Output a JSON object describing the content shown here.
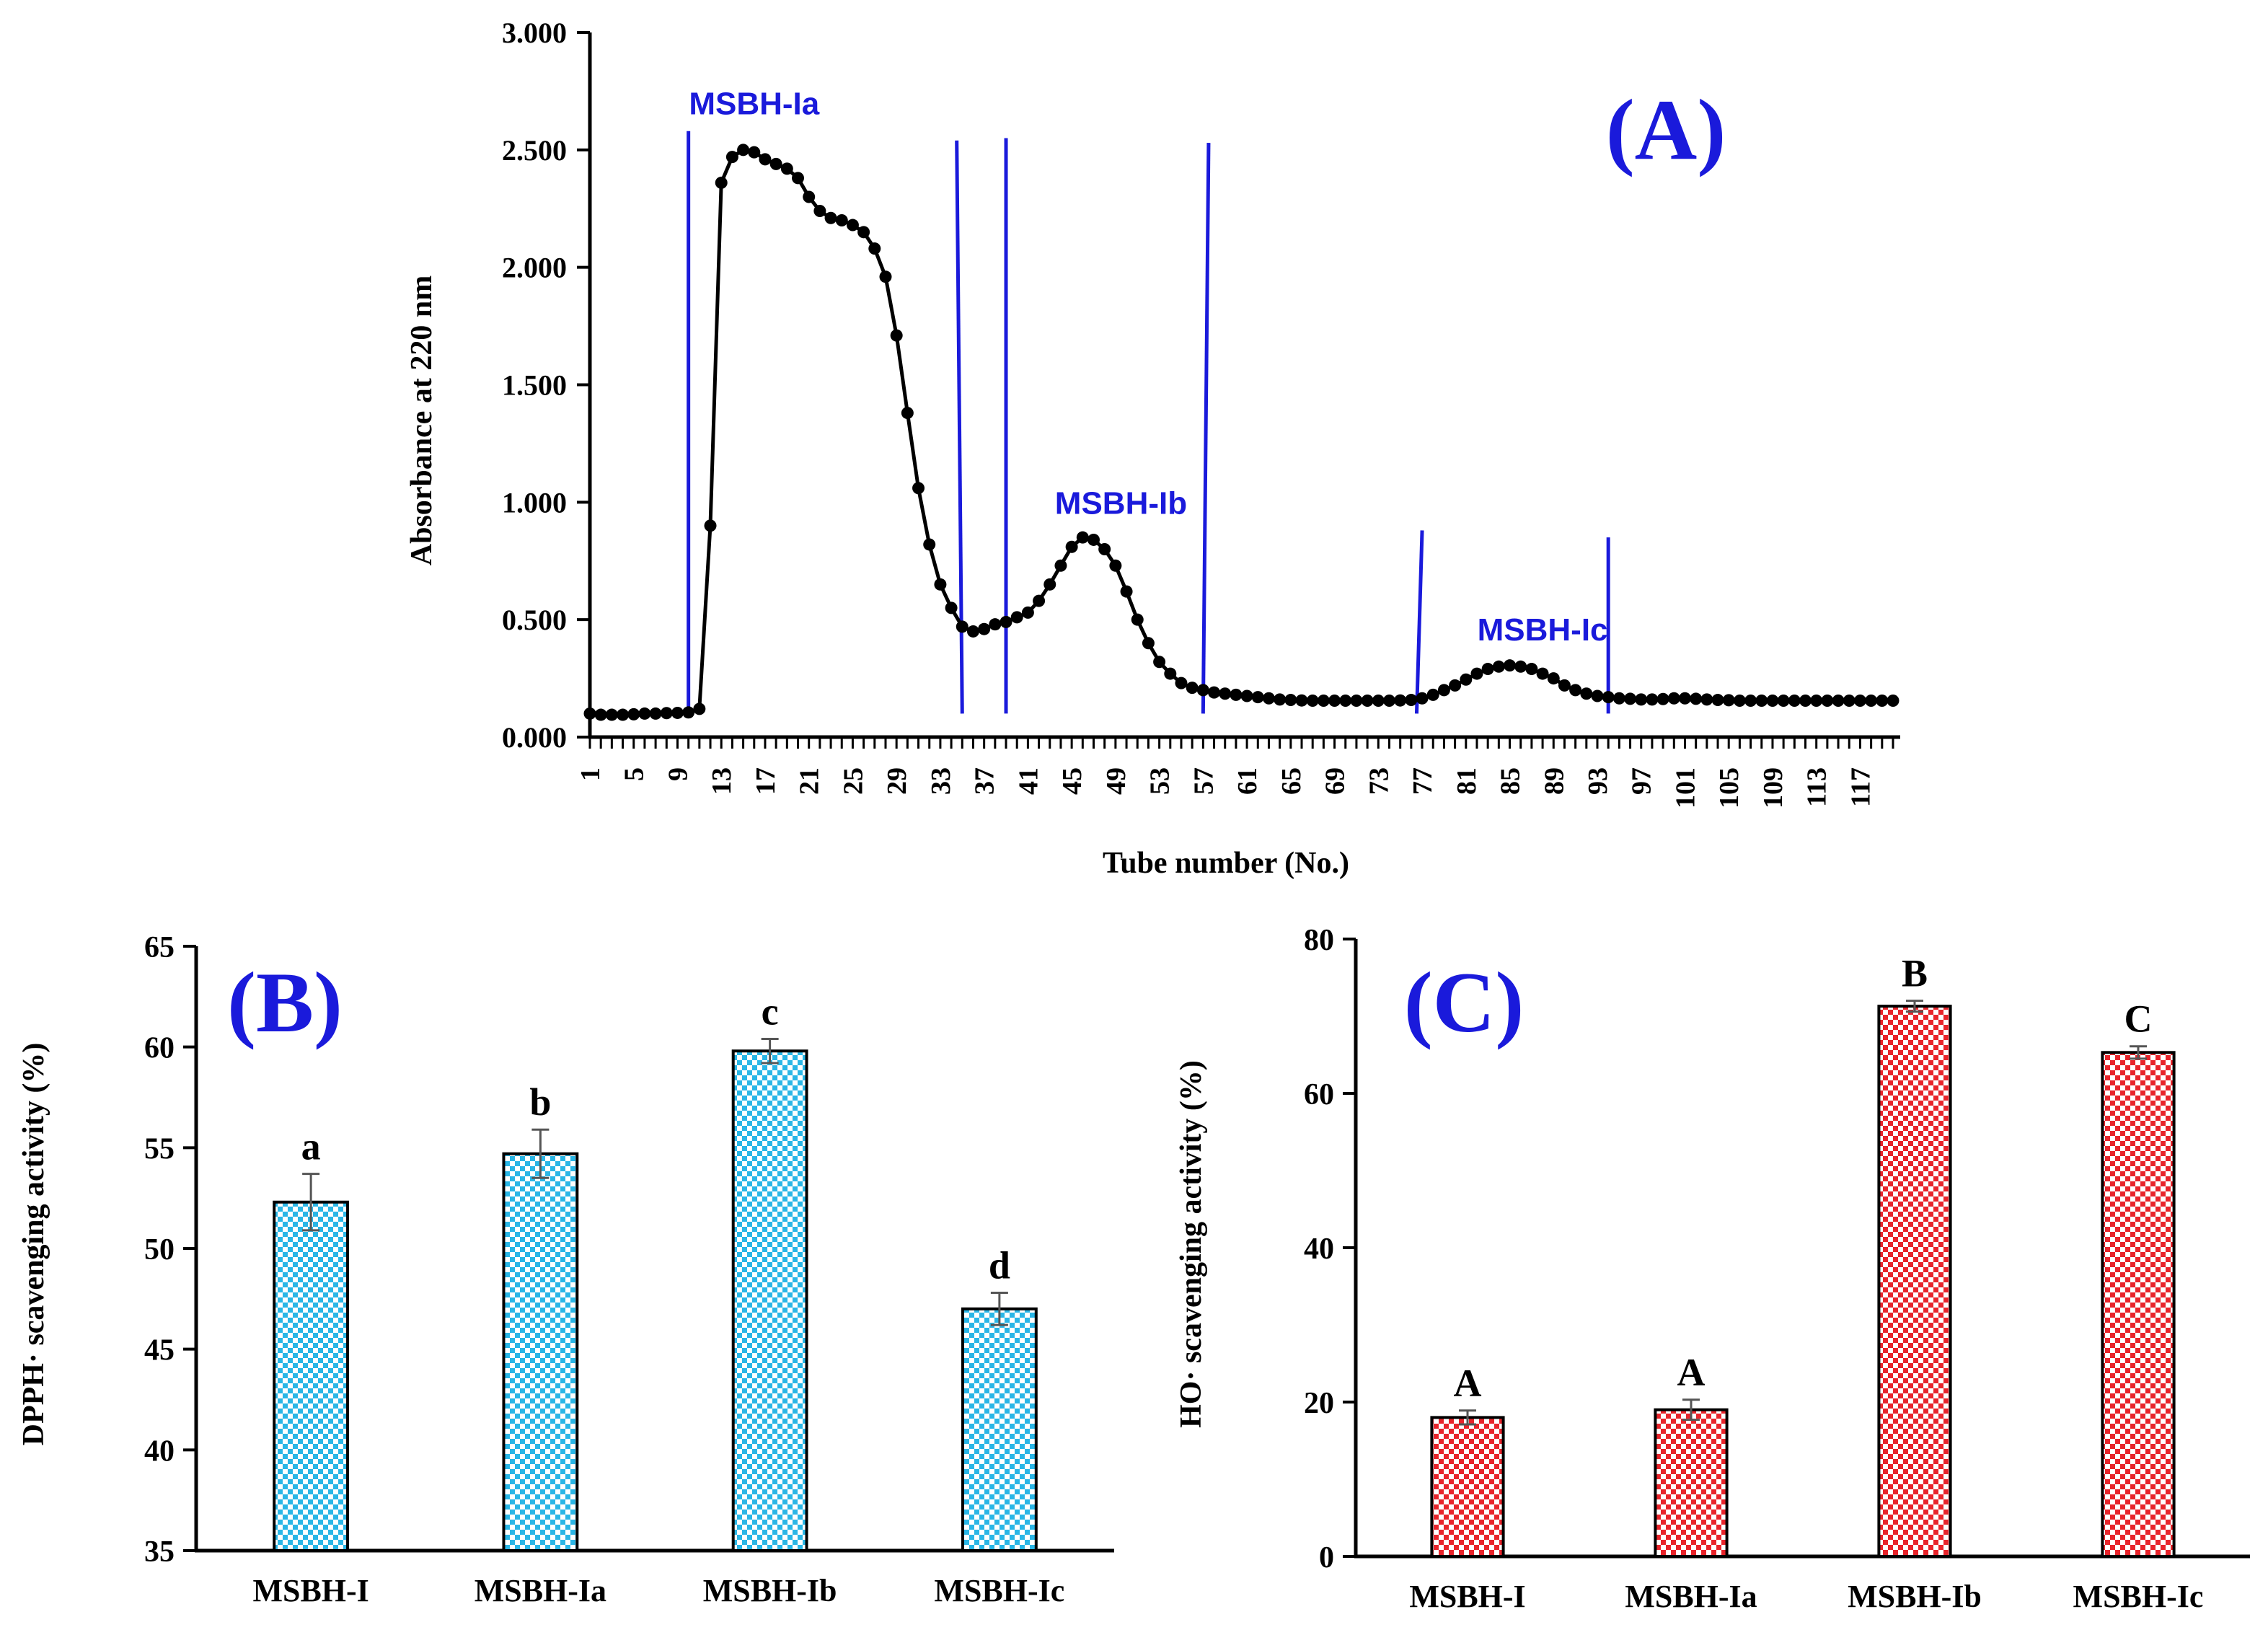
{
  "chart_data": [
    {
      "id": "A",
      "type": "line",
      "panel_label": "(A)",
      "title": "",
      "xlabel": "Tube number (No.)",
      "ylabel": "Absorbance  at 220 nm",
      "ylim": [
        0,
        3
      ],
      "xlim": [
        1,
        120
      ],
      "y_ticks": [
        "0.000",
        "0.500",
        "1.000",
        "1.500",
        "2.000",
        "2.500",
        "3.000"
      ],
      "x_tick_labels": [
        "1",
        "5",
        "9",
        "13",
        "17",
        "21",
        "25",
        "29",
        "33",
        "37",
        "41",
        "45",
        "49",
        "53",
        "57",
        "61",
        "65",
        "69",
        "73",
        "77",
        "81",
        "85",
        "89",
        "93",
        "97",
        "101",
        "105",
        "109",
        "113",
        "117"
      ],
      "color": "#000000",
      "fraction_color": "#1a1adb",
      "fraction_lines": [
        {
          "x_bottom": 10,
          "x_top": 10,
          "y_top": 2.58
        },
        {
          "x_bottom": 35,
          "x_top": 34.5,
          "y_top": 2.54
        },
        {
          "x_bottom": 39,
          "x_top": 39,
          "y_top": 2.55
        },
        {
          "x_bottom": 57,
          "x_top": 57.5,
          "y_top": 2.53
        },
        {
          "x_bottom": 76.5,
          "x_top": 77,
          "y_top": 0.88
        },
        {
          "x_bottom": 94,
          "x_top": 94,
          "y_top": 0.85
        }
      ],
      "fractions": [
        {
          "name": "MSBH-Ia",
          "x": 16,
          "y": 2.7
        },
        {
          "name": "MSBH-Ib",
          "x": 49.5,
          "y": 1.0
        },
        {
          "name": "MSBH-Ic",
          "x": 88,
          "y": 0.46
        }
      ],
      "x": [
        1,
        2,
        3,
        4,
        5,
        6,
        7,
        8,
        9,
        10,
        11,
        12,
        13,
        14,
        15,
        16,
        17,
        18,
        19,
        20,
        21,
        22,
        23,
        24,
        25,
        26,
        27,
        28,
        29,
        30,
        31,
        32,
        33,
        34,
        35,
        36,
        37,
        38,
        39,
        40,
        41,
        42,
        43,
        44,
        45,
        46,
        47,
        48,
        49,
        50,
        51,
        52,
        53,
        54,
        55,
        56,
        57,
        58,
        59,
        60,
        61,
        62,
        63,
        64,
        65,
        66,
        67,
        68,
        69,
        70,
        71,
        72,
        73,
        74,
        75,
        76,
        77,
        78,
        79,
        80,
        81,
        82,
        83,
        84,
        85,
        86,
        87,
        88,
        89,
        90,
        91,
        92,
        93,
        94,
        95,
        96,
        97,
        98,
        99,
        100,
        101,
        102,
        103,
        104,
        105,
        106,
        107,
        108,
        109,
        110,
        111,
        112,
        113,
        114,
        115,
        116,
        117,
        118,
        119,
        120
      ],
      "values": [
        0.1,
        0.095,
        0.095,
        0.095,
        0.097,
        0.1,
        0.1,
        0.102,
        0.103,
        0.105,
        0.12,
        0.9,
        2.36,
        2.47,
        2.5,
        2.49,
        2.46,
        2.44,
        2.42,
        2.38,
        2.3,
        2.24,
        2.21,
        2.2,
        2.18,
        2.15,
        2.08,
        1.96,
        1.71,
        1.38,
        1.06,
        0.82,
        0.65,
        0.55,
        0.47,
        0.45,
        0.46,
        0.48,
        0.49,
        0.51,
        0.53,
        0.58,
        0.65,
        0.73,
        0.81,
        0.85,
        0.84,
        0.8,
        0.73,
        0.62,
        0.5,
        0.4,
        0.32,
        0.27,
        0.23,
        0.21,
        0.2,
        0.19,
        0.185,
        0.18,
        0.175,
        0.17,
        0.165,
        0.16,
        0.158,
        0.156,
        0.155,
        0.155,
        0.155,
        0.155,
        0.155,
        0.155,
        0.155,
        0.155,
        0.156,
        0.158,
        0.165,
        0.18,
        0.2,
        0.22,
        0.245,
        0.27,
        0.29,
        0.3,
        0.305,
        0.3,
        0.29,
        0.27,
        0.25,
        0.22,
        0.2,
        0.185,
        0.175,
        0.17,
        0.165,
        0.163,
        0.16,
        0.16,
        0.162,
        0.165,
        0.165,
        0.163,
        0.16,
        0.158,
        0.157,
        0.155,
        0.155,
        0.155,
        0.155,
        0.155,
        0.155,
        0.155,
        0.155,
        0.155,
        0.155,
        0.155,
        0.155,
        0.155,
        0.155,
        0.155
      ]
    },
    {
      "id": "B",
      "type": "bar",
      "panel_label": "(B)",
      "title": "",
      "xlabel": "",
      "ylabel": "DPPH· scavenging activity (%)",
      "ylim": [
        35,
        65
      ],
      "y_ticks": [
        "35",
        "40",
        "45",
        "50",
        "55",
        "60",
        "65"
      ],
      "categories": [
        "MSBH-I",
        "MSBH-Ia",
        "MSBH-Ib",
        "MSBH-Ic"
      ],
      "values": [
        52.3,
        54.7,
        59.8,
        47.0
      ],
      "errors": [
        1.4,
        1.2,
        0.6,
        0.8
      ],
      "letters": [
        "a",
        "b",
        "c",
        "d"
      ],
      "color": "#2ab6e6"
    },
    {
      "id": "C",
      "type": "bar",
      "panel_label": "(C)",
      "title": "",
      "xlabel": "",
      "ylabel": "HO· scavenging activity (%)",
      "ylim": [
        0,
        80
      ],
      "y_ticks": [
        "0",
        "20",
        "40",
        "60",
        "80"
      ],
      "categories": [
        "MSBH-I",
        "MSBH-Ia",
        "MSBH-Ib",
        "MSBH-Ic"
      ],
      "values": [
        18.0,
        19.0,
        71.3,
        65.3
      ],
      "errors": [
        0.9,
        1.3,
        0.7,
        0.8
      ],
      "letters": [
        "A",
        "A",
        "B",
        "C"
      ],
      "color": "#e8242b"
    }
  ]
}
